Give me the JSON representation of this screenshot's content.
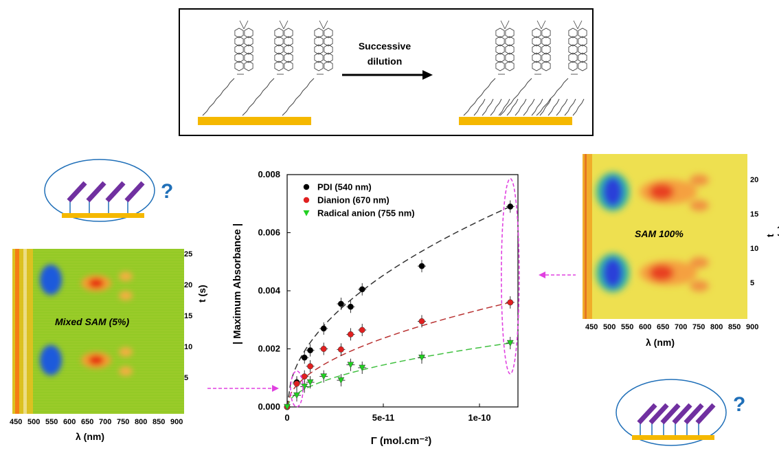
{
  "scheme": {
    "arrow_label_line1": "Successive",
    "arrow_label_line2": "dilution"
  },
  "question_mark": "?",
  "left_map": {
    "label": "Mixed SAM (5%)",
    "xlabel": "λ (nm)",
    "ylabel": "t (s)",
    "xticks": [
      "450",
      "500",
      "550",
      "600",
      "650",
      "700",
      "750",
      "800",
      "850",
      "900"
    ],
    "yticks": [
      "25",
      "20",
      "15",
      "10",
      "5"
    ]
  },
  "right_map": {
    "label": "SAM 100%",
    "xlabel": "λ (nm)",
    "ylabel": "t (s)",
    "xticks": [
      "450",
      "500",
      "550",
      "600",
      "650",
      "700",
      "750",
      "800",
      "850",
      "900"
    ],
    "yticks": [
      "20",
      "15",
      "10",
      "5"
    ]
  },
  "chart_data": {
    "type": "scatter",
    "xlabel": "Γ (mol.cm⁻²)",
    "ylabel": "| Maximum Absorbance |",
    "xlim": [
      0,
      1.2e-10
    ],
    "ylim": [
      0,
      0.008
    ],
    "xticks": [
      {
        "v": 0,
        "t": "0"
      },
      {
        "v": 5e-11,
        "t": "5e-11"
      },
      {
        "v": 1e-10,
        "t": "1e-10"
      }
    ],
    "yticks": [
      {
        "v": 0,
        "t": "0.000"
      },
      {
        "v": 0.002,
        "t": "0.002"
      },
      {
        "v": 0.004,
        "t": "0.004"
      },
      {
        "v": 0.006,
        "t": "0.006"
      },
      {
        "v": 0.008,
        "t": "0.008"
      }
    ],
    "legend_position": "top-left",
    "grid": false,
    "series": [
      {
        "name": "PDI (540 nm)",
        "color": "#000000",
        "marker": "circle",
        "x": [
          0,
          5e-12,
          9e-12,
          1.2e-11,
          1.9e-11,
          2.8e-11,
          3.3e-11,
          3.9e-11,
          7e-11,
          1.16e-10
        ],
        "y": [
          0,
          0.00085,
          0.0017,
          0.00195,
          0.0027,
          0.00355,
          0.00345,
          0.00405,
          0.00485,
          0.0069
        ]
      },
      {
        "name": "Dianion (670 nm)",
        "color": "#e02020",
        "marker": "circle",
        "x": [
          0,
          5e-12,
          9e-12,
          1.2e-11,
          1.9e-11,
          2.8e-11,
          3.3e-11,
          3.9e-11,
          7e-11,
          1.16e-10
        ],
        "y": [
          0,
          0.0008,
          0.00105,
          0.0014,
          0.002,
          0.00198,
          0.0025,
          0.00265,
          0.00295,
          0.0036
        ]
      },
      {
        "name": "Radical anion (755 nm)",
        "color": "#22d022",
        "marker": "triangle",
        "x": [
          0,
          5e-12,
          9e-12,
          1.2e-11,
          1.9e-11,
          2.8e-11,
          3.3e-11,
          3.9e-11,
          7e-11,
          1.16e-10
        ],
        "y": [
          0,
          0.0004,
          0.0007,
          0.00085,
          0.00105,
          0.00092,
          0.00145,
          0.00135,
          0.0017,
          0.0022
        ]
      }
    ]
  },
  "colors": {
    "gold": "#f5b800",
    "purple": "#7030a0",
    "oval_stroke": "#1f6fb8",
    "magenta": "#e040e0"
  }
}
